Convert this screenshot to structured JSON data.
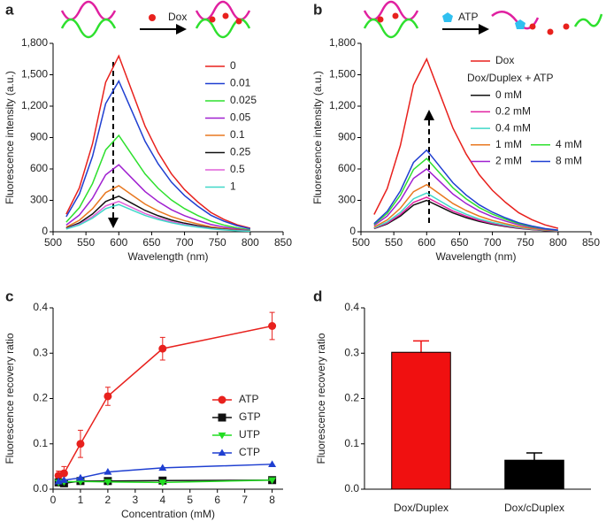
{
  "chart_data": [
    {
      "type": "line",
      "panel_label": "a",
      "annotation": "Dox",
      "x_label": "Wavelength (nm)",
      "y_label": "Fluorescence intensity (a.u.)",
      "x": [
        520,
        540,
        560,
        580,
        600,
        620,
        640,
        660,
        680,
        700,
        720,
        740,
        760,
        780,
        800
      ],
      "xlim": [
        500,
        850
      ],
      "xticks": [
        500,
        550,
        600,
        650,
        700,
        750,
        800,
        850
      ],
      "ylim": [
        0,
        1800
      ],
      "yticks": [
        0,
        300,
        600,
        900,
        {
          "value": 1200,
          "label": "1,200"
        },
        {
          "value": 1500,
          "label": "1,500"
        },
        {
          "value": 1800,
          "label": "1,800"
        }
      ],
      "series": [
        {
          "name": "0",
          "color": "#e8211d",
          "values": [
            168,
            420,
            840,
            1428,
            1680,
            1344,
            1008,
            756,
            554,
            403,
            286,
            185,
            118,
            67,
            34
          ]
        },
        {
          "name": "0.01",
          "color": "#1f3fd1",
          "values": [
            144,
            360,
            720,
            1224,
            1440,
            1152,
            864,
            648,
            475,
            346,
            245,
            158,
            101,
            58,
            29
          ]
        },
        {
          "name": "0.025",
          "color": "#2ee02e",
          "values": [
            92,
            230,
            460,
            782,
            920,
            736,
            552,
            414,
            304,
            221,
            156,
            101,
            64,
            37,
            18
          ]
        },
        {
          "name": "0.05",
          "color": "#a020d0",
          "values": [
            64,
            160,
            320,
            544,
            640,
            512,
            384,
            288,
            211,
            154,
            109,
            70,
            45,
            26,
            13
          ]
        },
        {
          "name": "0.1",
          "color": "#e87820",
          "values": [
            44,
            110,
            220,
            374,
            440,
            352,
            264,
            198,
            145,
            106,
            75,
            48,
            31,
            18,
            9
          ]
        },
        {
          "name": "0.25",
          "color": "#111111",
          "values": [
            34,
            85,
            170,
            289,
            340,
            272,
            204,
            153,
            112,
            82,
            58,
            37,
            24,
            14,
            7
          ]
        },
        {
          "name": "0.5",
          "color": "#e060d8",
          "values": [
            29,
            73,
            145,
            247,
            290,
            232,
            174,
            131,
            96,
            70,
            49,
            32,
            20,
            12,
            6
          ]
        },
        {
          "name": "1",
          "color": "#40d8c8",
          "values": [
            26,
            65,
            130,
            221,
            260,
            208,
            156,
            117,
            86,
            62,
            44,
            29,
            18,
            10,
            5
          ]
        }
      ]
    },
    {
      "type": "line",
      "panel_label": "b",
      "annotation": "ATP",
      "legend_title": "Dox/Duplex + ATP",
      "x_label": "Wavelength (nm)",
      "y_label": "Fluorescence intensity (a.u.)",
      "x": [
        520,
        540,
        560,
        580,
        600,
        620,
        640,
        660,
        680,
        700,
        720,
        740,
        760,
        780,
        800
      ],
      "xlim": [
        500,
        850
      ],
      "xticks": [
        500,
        550,
        600,
        650,
        700,
        750,
        800,
        850
      ],
      "ylim": [
        0,
        1800
      ],
      "yticks": [
        0,
        300,
        600,
        900,
        {
          "value": 1200,
          "label": "1,200"
        },
        {
          "value": 1500,
          "label": "1,500"
        },
        {
          "value": 1800,
          "label": "1,800"
        }
      ],
      "series": [
        {
          "name": "Dox",
          "color": "#e8211d",
          "values": [
            165,
            413,
            825,
            1403,
            1650,
            1320,
            990,
            743,
            545,
            396,
            281,
            182,
            116,
            66,
            33
          ]
        },
        {
          "name": "0 mM",
          "color": "#111111",
          "values": [
            30,
            75,
            150,
            255,
            300,
            240,
            180,
            135,
            99,
            72,
            51,
            33,
            21,
            12,
            6
          ]
        },
        {
          "name": "0.2 mM",
          "color": "#e020a0",
          "values": [
            33,
            83,
            165,
            281,
            330,
            264,
            198,
            149,
            109,
            79,
            56,
            36,
            23,
            13,
            7
          ]
        },
        {
          "name": "0.4 mM",
          "color": "#40d8c8",
          "values": [
            37,
            93,
            185,
            315,
            370,
            296,
            222,
            167,
            122,
            89,
            63,
            41,
            26,
            15,
            7
          ]
        },
        {
          "name": "1 mM",
          "color": "#e87820",
          "values": [
            45,
            113,
            225,
            383,
            450,
            360,
            270,
            203,
            149,
            108,
            77,
            50,
            32,
            18,
            9
          ]
        },
        {
          "name": "2 mM",
          "color": "#a020d0",
          "values": [
            60,
            150,
            300,
            510,
            600,
            480,
            360,
            270,
            198,
            144,
            102,
            66,
            42,
            24,
            12
          ]
        },
        {
          "name": "4 mM",
          "color": "#2ee02e",
          "values": [
            70,
            175,
            350,
            595,
            700,
            560,
            420,
            315,
            231,
            168,
            119,
            77,
            49,
            28,
            14
          ]
        },
        {
          "name": "8 mM",
          "color": "#1f3fd1",
          "values": [
            78,
            195,
            390,
            663,
            780,
            624,
            468,
            351,
            257,
            187,
            133,
            86,
            55,
            31,
            16
          ]
        }
      ]
    },
    {
      "type": "line",
      "panel_label": "c",
      "x_label": "Concentration (mM)",
      "y_label": "Fluorescence recovery ratio",
      "x": [
        0.2,
        0.4,
        1,
        2,
        4,
        8
      ],
      "xlim": [
        0,
        8.4
      ],
      "xticks": [
        0,
        1,
        2,
        3,
        4,
        5,
        6,
        7,
        8
      ],
      "ylim": [
        0,
        0.4
      ],
      "yticks": [
        {
          "value": 0,
          "label": "0.0"
        },
        0.1,
        0.2,
        0.3,
        0.4
      ],
      "series": [
        {
          "name": "ATP",
          "color": "#e8211d",
          "marker": "circle",
          "values": [
            0.03,
            0.035,
            0.1,
            0.205,
            0.31,
            0.36
          ],
          "errors": [
            0.01,
            0.015,
            0.03,
            0.02,
            0.025,
            0.03
          ]
        },
        {
          "name": "GTP",
          "color": "#111111",
          "marker": "square",
          "values": [
            0.015,
            0.013,
            0.018,
            0.018,
            0.019,
            0.02
          ]
        },
        {
          "name": "UTP",
          "color": "#22dd22",
          "marker": "triangle-down",
          "values": [
            0.015,
            0.016,
            0.017,
            0.016,
            0.015,
            0.02
          ]
        },
        {
          "name": "CTP",
          "color": "#1f3fd1",
          "marker": "triangle-up",
          "values": [
            0.017,
            0.02,
            0.025,
            0.038,
            0.047,
            0.055
          ]
        }
      ]
    },
    {
      "type": "bar",
      "panel_label": "d",
      "y_label": "Fluorescence recovery ratio",
      "categories": [
        "Dox/Duplex",
        "Dox/cDuplex"
      ],
      "values": [
        0.302,
        0.064
      ],
      "errors": [
        0.025,
        0.016
      ],
      "colors": [
        "#f01010",
        "#000000"
      ],
      "ylim": [
        0,
        0.4
      ],
      "yticks": [
        {
          "value": 0,
          "label": "0.0"
        },
        0.1,
        0.2,
        0.3,
        0.4
      ]
    }
  ]
}
